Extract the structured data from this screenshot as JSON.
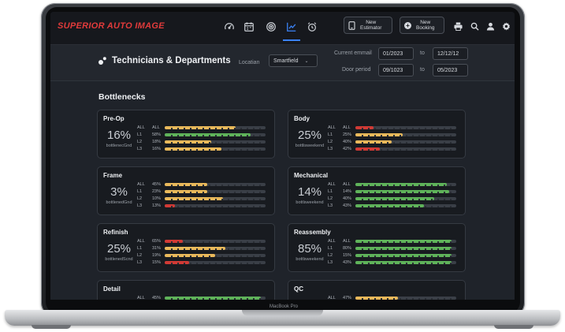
{
  "brand": {
    "name": "SUPERIOR AUTO IMAGE"
  },
  "nav_icons": [
    "speedometer-icon",
    "calendar-icon",
    "target-icon",
    "chart-line-icon",
    "alarm-clock-icon"
  ],
  "header_buttons": [
    {
      "label": "New\nEstimator",
      "icon": "phone-icon"
    },
    {
      "label": "New\nBooking",
      "icon": "plus-circle-icon"
    }
  ],
  "utility_icons": [
    "print-icon",
    "search-icon",
    "user-icon",
    "gear-icon"
  ],
  "page": {
    "title": "Technicians & Departments",
    "location_label": "Locatian",
    "location_value": "Smartfield",
    "current_label": "Current emmail",
    "current_from": "01/2023",
    "current_to": "12/12/12",
    "door_label": "Door period",
    "door_from": "09/1023",
    "door_to": "05/2023",
    "to_label": "to"
  },
  "section": {
    "title": "Bottlenecks"
  },
  "colors": {
    "yellow": "#e9b95b",
    "green": "#5fb35a",
    "red": "#d13a35",
    "accent": "#3b82f6",
    "brand": "#e23b3b"
  },
  "departments": [
    {
      "name": "Pre-Op",
      "percent": "16%",
      "subtitle": "bottlenecGnd",
      "rows": [
        {
          "level": "ALL",
          "pct": "ALL",
          "fill": 0.7,
          "color": "yellow"
        },
        {
          "level": "L1",
          "pct": "58%",
          "fill": 0.85,
          "color": "green"
        },
        {
          "level": "L2",
          "pct": "18%",
          "fill": 0.46,
          "color": "yellow"
        },
        {
          "level": "L3",
          "pct": "16%",
          "fill": 0.56,
          "color": "yellow"
        }
      ]
    },
    {
      "name": "Body",
      "percent": "25%",
      "subtitle": "bottlisweekend",
      "rows": [
        {
          "level": "ALL",
          "pct": "ALL",
          "fill": 0.18,
          "color": "red"
        },
        {
          "level": "L1",
          "pct": "25%",
          "fill": 0.47,
          "color": "yellow"
        },
        {
          "level": "L2",
          "pct": "40%",
          "fill": 0.36,
          "color": "yellow"
        },
        {
          "level": "L3",
          "pct": "42%",
          "fill": 0.24,
          "color": "red"
        }
      ]
    },
    {
      "name": "Frame",
      "percent": "3%",
      "subtitle": "bottlenedGnd",
      "rows": [
        {
          "level": "ALL",
          "pct": "45%",
          "fill": 0.42,
          "color": "yellow"
        },
        {
          "level": "L1",
          "pct": "23%",
          "fill": 0.42,
          "color": "yellow"
        },
        {
          "level": "L2",
          "pct": "10%",
          "fill": 0.58,
          "color": "yellow"
        },
        {
          "level": "L3",
          "pct": "13%",
          "fill": 0.1,
          "color": "red"
        }
      ]
    },
    {
      "name": "Mechanical",
      "percent": "14%",
      "subtitle": "bottlsweekend",
      "rows": [
        {
          "level": "ALL",
          "pct": "ALL",
          "fill": 0.91,
          "color": "green"
        },
        {
          "level": "L1",
          "pct": "14%",
          "fill": 0.93,
          "color": "green"
        },
        {
          "level": "L2",
          "pct": "40%",
          "fill": 0.78,
          "color": "green"
        },
        {
          "level": "L3",
          "pct": "43%",
          "fill": 0.68,
          "color": "green"
        }
      ]
    },
    {
      "name": "Refinish",
      "percent": "25%",
      "subtitle": "bottlenedScnd",
      "rows": [
        {
          "level": "ALL",
          "pct": "65%",
          "fill": 0.18,
          "color": "red"
        },
        {
          "level": "L1",
          "pct": "31%",
          "fill": 0.6,
          "color": "yellow"
        },
        {
          "level": "L2",
          "pct": "19%",
          "fill": 0.5,
          "color": "yellow"
        },
        {
          "level": "L3",
          "pct": "15%",
          "fill": 0.24,
          "color": "red"
        }
      ]
    },
    {
      "name": "Reassembly",
      "percent": "85%",
      "subtitle": "bottlsweekend",
      "rows": [
        {
          "level": "ALL",
          "pct": "ALL",
          "fill": 0.95,
          "color": "green"
        },
        {
          "level": "L1",
          "pct": "80%",
          "fill": 0.95,
          "color": "green"
        },
        {
          "level": "L2",
          "pct": "15%",
          "fill": 0.95,
          "color": "green"
        },
        {
          "level": "L3",
          "pct": "43%",
          "fill": 0.95,
          "color": "green"
        }
      ]
    },
    {
      "name": "Detail",
      "percent": "",
      "subtitle": "",
      "rows": [
        {
          "level": "ALL",
          "pct": "45%",
          "fill": 0.95,
          "color": "green"
        }
      ]
    },
    {
      "name": "QC",
      "percent": "",
      "subtitle": "",
      "rows": [
        {
          "level": "ALL",
          "pct": "47%",
          "fill": 0.42,
          "color": "yellow"
        }
      ]
    }
  ],
  "laptop": {
    "model": "MacBook Pro"
  }
}
